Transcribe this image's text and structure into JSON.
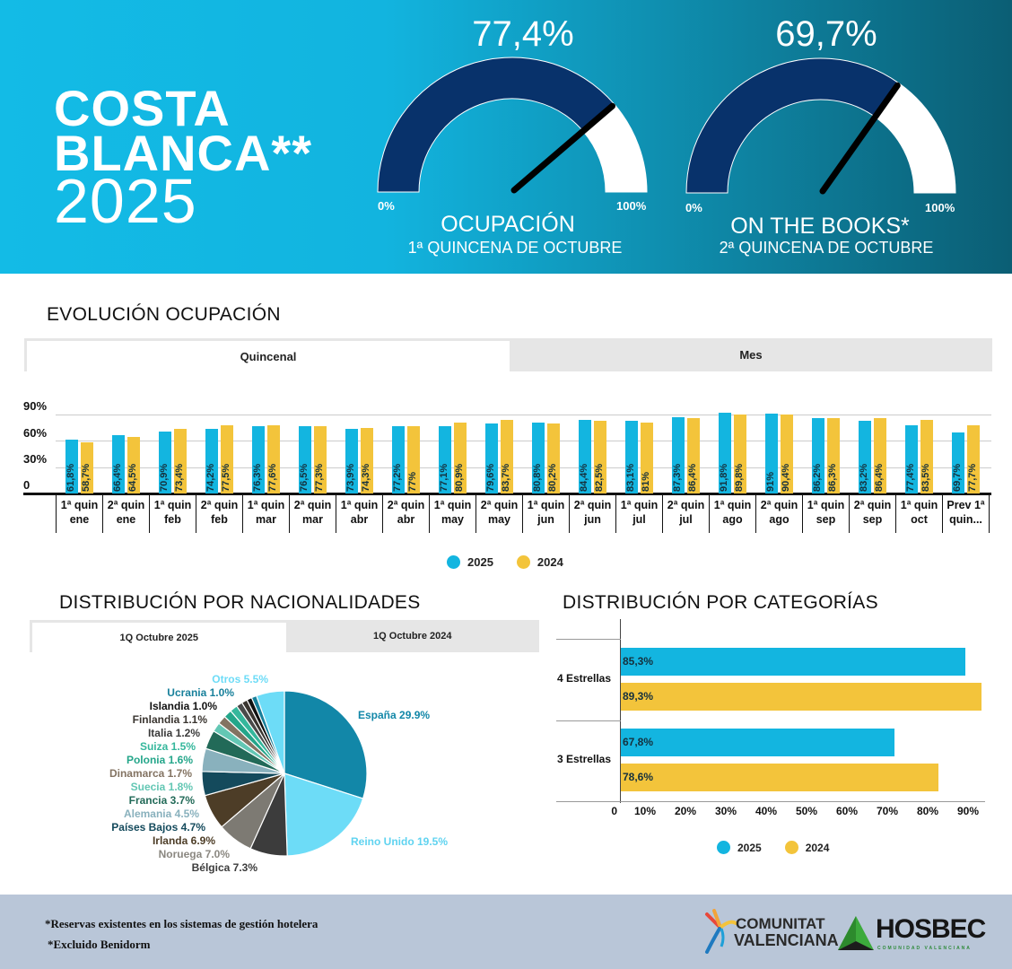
{
  "header": {
    "title_line1": "COSTA",
    "title_line2": "BLANCA**",
    "title_year": "2025",
    "gauges": [
      {
        "value_label": "77,4%",
        "value": 77.4,
        "min_label": "0%",
        "max_label": "100%",
        "title": "OCUPACIÓN",
        "subtitle": "1ª QUINCENA DE OCTUBRE"
      },
      {
        "value_label": "69,7%",
        "value": 69.7,
        "min_label": "0%",
        "max_label": "100%",
        "title": "ON THE BOOKS*",
        "subtitle": "2ª QUINCENA DE OCTUBRE"
      }
    ],
    "colors": {
      "gauge_fill": "#08326b",
      "gauge_empty": "#ffffff",
      "needle": "#000000"
    }
  },
  "evolucion": {
    "title": "EVOLUCIÓN OCUPACIÓN",
    "tabs": [
      {
        "label": "Quincenal",
        "active": true
      },
      {
        "label": "Mes",
        "active": false
      }
    ]
  },
  "nacionalidades": {
    "title": "DISTRIBUCIÓN POR NACIONALIDADES",
    "tabs": [
      {
        "label": "1Q Octubre 2025",
        "active": true
      },
      {
        "label": "1Q Octubre 2024",
        "active": false
      }
    ]
  },
  "categorias": {
    "title": "DISTRIBUCIÓN POR CATEGORÍAS"
  },
  "chart_data": [
    {
      "type": "bar",
      "categories": [
        "1ª quin ene",
        "2ª quin ene",
        "1ª quin feb",
        "2ª quin feb",
        "1ª quin mar",
        "2ª quin mar",
        "1ª quin abr",
        "2ª quin abr",
        "1ª quin may",
        "2ª quin may",
        "1ª quin jun",
        "2ª quin jun",
        "1ª quin jul",
        "2ª quin jul",
        "1ª quin ago",
        "2ª quin ago",
        "1ª quin sep",
        "2ª quin sep",
        "1ª quin oct",
        "Prev 1ª quin..."
      ],
      "series": [
        {
          "name": "2025",
          "color": "#13b5e0",
          "values": [
            61.8,
            66.4,
            70.9,
            74.2,
            76.3,
            76.5,
            73.9,
            77.2,
            77.1,
            79.6,
            80.8,
            84.4,
            83.1,
            87.3,
            91.8,
            91,
            86.2,
            83.2,
            77.4,
            69.7
          ],
          "labels": [
            "61,8%",
            "66,4%",
            "70,9%",
            "74,2%",
            "76,3%",
            "76,5%",
            "73,9%",
            "77,2%",
            "77,1%",
            "79,6%",
            "80,8%",
            "84,4%",
            "83,1%",
            "87,3%",
            "91,8%",
            "91%",
            "86,2%",
            "83,2%",
            "77,4%",
            "69,7%"
          ]
        },
        {
          "name": "2024",
          "color": "#f3c43b",
          "values": [
            58.7,
            64.5,
            73.4,
            77.5,
            77.6,
            77.3,
            74.3,
            77,
            80.9,
            83.7,
            80.2,
            82.5,
            81,
            86.4,
            89.8,
            90.4,
            86.3,
            86.4,
            83.5,
            77.7
          ],
          "labels": [
            "58,7%",
            "64,5%",
            "73,4%",
            "77,5%",
            "77,6%",
            "77,3%",
            "74,3%",
            "77%",
            "80,9%",
            "83,7%",
            "80,2%",
            "82,5%",
            "81%",
            "86,4%",
            "89,8%",
            "90,4%",
            "86,3%",
            "86,4%",
            "83,5%",
            "77,7%"
          ]
        }
      ],
      "yticks": [
        "0",
        "30%",
        "60%",
        "90%"
      ],
      "ylim": [
        0,
        90
      ],
      "grid": true,
      "legend": "bottom-center"
    },
    {
      "type": "pie",
      "slices": [
        {
          "label": "España 29.9%",
          "value": 29.9,
          "color": "#1287a8"
        },
        {
          "label": "Reino Unido 19.5%",
          "value": 19.5,
          "color": "#6ddcf7"
        },
        {
          "label": "Bélgica 7.3%",
          "value": 7.3,
          "color": "#3c3c3c"
        },
        {
          "label": "Noruega 7.0%",
          "value": 7.0,
          "color": "#7d7a73"
        },
        {
          "label": "Irlanda 6.9%",
          "value": 6.9,
          "color": "#4d3d27"
        },
        {
          "label": "Países Bajos 4.7%",
          "value": 4.7,
          "color": "#144a5c"
        },
        {
          "label": "Alemania 4.5%",
          "value": 4.5,
          "color": "#89b1bd"
        },
        {
          "label": "Francia 3.7%",
          "value": 3.7,
          "color": "#226a58"
        },
        {
          "label": "Suecia 1.8%",
          "value": 1.8,
          "color": "#63c7b4"
        },
        {
          "label": "Dinamarca 1.7%",
          "value": 1.7,
          "color": "#837362"
        },
        {
          "label": "Polonia 1.6%",
          "value": 1.6,
          "color": "#24a68a"
        },
        {
          "label": "Suiza 1.5%",
          "value": 1.5,
          "color": "#35b79c"
        },
        {
          "label": "Italia 1.2%",
          "value": 1.2,
          "color": "#4a4a4a"
        },
        {
          "label": "Finlandia 1.1%",
          "value": 1.1,
          "color": "#3a3530"
        },
        {
          "label": "Islandia 1.0%",
          "value": 1.0,
          "color": "#111111"
        },
        {
          "label": "Ucrania 1.0%",
          "value": 1.0,
          "color": "#18809b"
        },
        {
          "label": "Otros 5.5%",
          "value": 5.5,
          "color": "#6ddcf7"
        }
      ]
    },
    {
      "type": "bar",
      "orientation": "horizontal",
      "categories": [
        "4 Estrellas",
        "3 Estrellas"
      ],
      "series": [
        {
          "name": "2025",
          "color": "#13b5e0",
          "values": [
            85.3,
            67.8
          ],
          "labels": [
            "85,3%",
            "67,8%"
          ]
        },
        {
          "name": "2024",
          "color": "#f3c43b",
          "values": [
            89.3,
            78.6
          ],
          "labels": [
            "89,3%",
            "78,6%"
          ]
        }
      ],
      "xticks": [
        "0",
        "10%",
        "20%",
        "30%",
        "40%",
        "50%",
        "60%",
        "70%",
        "80%",
        "90%"
      ],
      "xlim": [
        0,
        90
      ],
      "legend": "bottom-center"
    }
  ],
  "footer": {
    "note1": "*Reservas existentes en los sistemas de gestión hotelera",
    "note2": "*Excluido Benidorm",
    "logo1_text": [
      "COMUNITAT",
      "VALENCIANA"
    ],
    "logo2_text": "HOSBEC",
    "logo2_sub": "COMUNIDAD VALENCIANA"
  }
}
